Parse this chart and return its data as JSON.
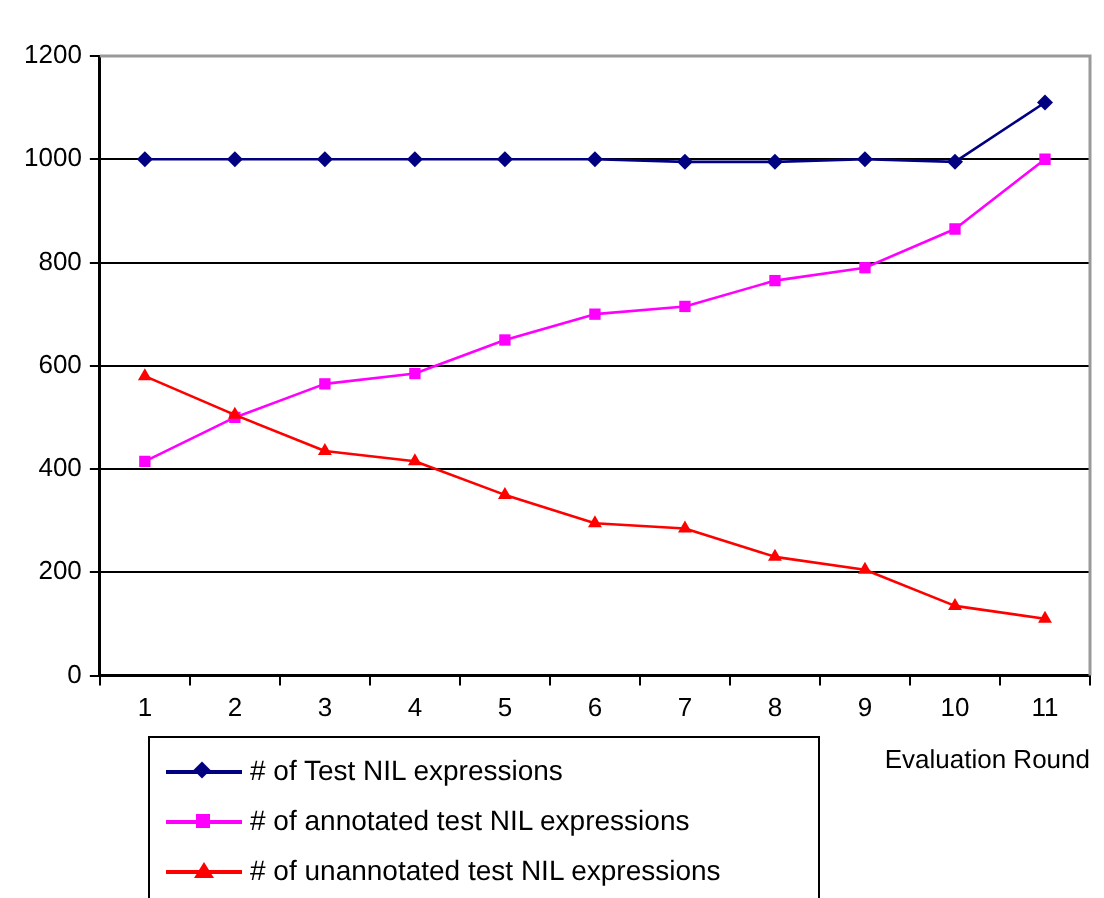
{
  "chart_data": {
    "type": "line",
    "xlabel": "Evaluation Round",
    "categories": [
      "1",
      "2",
      "3",
      "4",
      "5",
      "6",
      "7",
      "8",
      "9",
      "10",
      "11"
    ],
    "series": [
      {
        "name": "# of Test NIL expressions",
        "color": "#000080",
        "marker": "diamond",
        "values": [
          1000,
          1000,
          1000,
          1000,
          1000,
          1000,
          995,
          995,
          1000,
          995,
          1110
        ]
      },
      {
        "name": "# of annotated test NIL expressions",
        "color": "#ff00ff",
        "marker": "square",
        "values": [
          415,
          500,
          565,
          585,
          650,
          700,
          715,
          765,
          790,
          865,
          1000
        ]
      },
      {
        "name": "# of unannotated test NIL expressions",
        "color": "#ff0000",
        "marker": "triangle",
        "values": [
          580,
          505,
          435,
          415,
          350,
          295,
          285,
          230,
          205,
          135,
          110
        ]
      }
    ],
    "ylim": [
      0,
      1200
    ],
    "yticks": [
      0,
      200,
      400,
      600,
      800,
      1000,
      1200
    ],
    "grid": "y",
    "legend": "bottom left",
    "line_style": "solid"
  }
}
